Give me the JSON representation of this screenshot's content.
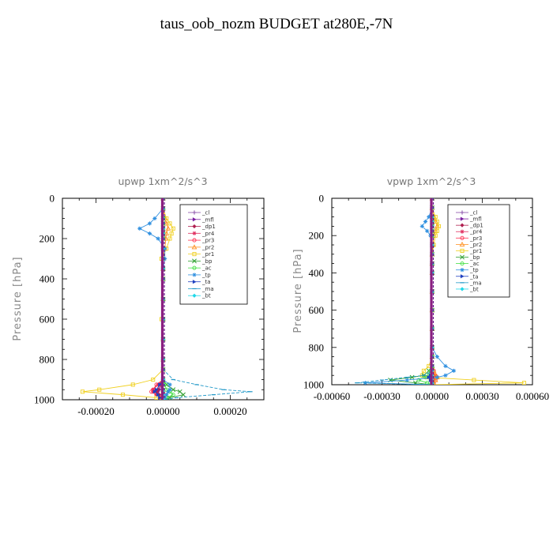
{
  "title": "taus_oob_nozm  BUDGET at280E,-7N",
  "chart_data": [
    {
      "type": "line",
      "title": "upwp   1xm^2/s^3",
      "ylabel": "Pressure [hPa]",
      "xlabel": "",
      "xlim": [
        -0.0003,
        0.0003
      ],
      "ylim": [
        1000,
        0
      ],
      "xticks": [
        -0.0002,
        0.0,
        0.0002
      ],
      "xtick_labels": [
        "-0.00020",
        "0.00000",
        "0.00020"
      ],
      "yticks": [
        0,
        200,
        400,
        600,
        800,
        1000
      ],
      "ytick_labels": [
        "0",
        "200",
        "400",
        "600",
        "800",
        "1000"
      ],
      "legend_position": "top-right",
      "p": [
        0,
        50,
        100,
        125,
        150,
        175,
        200,
        250,
        300,
        350,
        400,
        500,
        600,
        700,
        800,
        850,
        900,
        925,
        950,
        960,
        975,
        990,
        1000
      ],
      "series": [
        {
          "name": "_cl",
          "color": "#8a4fa8",
          "marker": "plus",
          "values": [
            0,
            0,
            0,
            0,
            0,
            0,
            0,
            0,
            0,
            0,
            0,
            0,
            0,
            0,
            0,
            0,
            0,
            0,
            0,
            0,
            0,
            0,
            0
          ]
        },
        {
          "name": "_mfl",
          "color": "#7a1fa2",
          "marker": "tri-right",
          "values": [
            0,
            0,
            0,
            0,
            0,
            0,
            0,
            0,
            0,
            0,
            0,
            0,
            0,
            0,
            0,
            0,
            0,
            -5e-06,
            -1e-05,
            -1.5e-05,
            -1e-05,
            -5e-06,
            0
          ]
        },
        {
          "name": "_dp1",
          "color": "#b02050",
          "marker": "diamond",
          "values": [
            0,
            0,
            0,
            0,
            0,
            0,
            0,
            0,
            0,
            0,
            0,
            0,
            0,
            0,
            0,
            0,
            0,
            -8e-06,
            -1.5e-05,
            -2e-05,
            -1.2e-05,
            -5e-06,
            0
          ]
        },
        {
          "name": "_pr4",
          "color": "#e03060",
          "marker": "star",
          "values": [
            0,
            0,
            0,
            0,
            0,
            0,
            0,
            0,
            0,
            0,
            0,
            0,
            0,
            0,
            0,
            0,
            0,
            -1.5e-05,
            -3e-05,
            -3e-05,
            -2e-05,
            -1e-05,
            0
          ]
        },
        {
          "name": "_pr3",
          "color": "#ff3050",
          "marker": "circle",
          "values": [
            0,
            0,
            0,
            0,
            0,
            0,
            0,
            0,
            0,
            0,
            0,
            0,
            0,
            0,
            0,
            0,
            0,
            -2e-05,
            -3e-05,
            -3.5e-05,
            -2e-05,
            -1e-05,
            0
          ]
        },
        {
          "name": "_pr2",
          "color": "#ff9020",
          "marker": "tri-up",
          "values": [
            0,
            0,
            5e-06,
            1e-05,
            1.5e-05,
            1e-05,
            8e-06,
            5e-06,
            0,
            0,
            0,
            0,
            0,
            0,
            0,
            0,
            0,
            0,
            0,
            0,
            0,
            0,
            0
          ]
        },
        {
          "name": "_pr1",
          "color": "#f0d020",
          "marker": "square",
          "values": [
            0,
            0,
            1e-05,
            2e-05,
            3e-05,
            2.5e-05,
            2e-05,
            1e-05,
            -5e-06,
            0,
            0,
            0,
            -5e-06,
            0,
            0,
            0,
            -3e-05,
            -9e-05,
            -0.00019,
            -0.00024,
            -0.00012,
            -2e-05,
            0
          ]
        },
        {
          "name": "_bp",
          "color": "#30a030",
          "marker": "x",
          "values": [
            0,
            0,
            0,
            0,
            0,
            0,
            0,
            0,
            0,
            0,
            0,
            0,
            0,
            0,
            0,
            0,
            0,
            1e-05,
            3e-05,
            5e-05,
            6e-05,
            2e-05,
            0
          ]
        },
        {
          "name": "_ac",
          "color": "#40e040",
          "marker": "circle",
          "values": [
            0,
            0,
            0,
            0,
            0,
            0,
            0,
            0,
            0,
            0,
            0,
            0,
            0,
            0,
            0,
            0,
            0,
            5e-06,
            1e-05,
            2e-05,
            3e-05,
            1e-05,
            0
          ]
        },
        {
          "name": "_tp",
          "color": "#3090e0",
          "marker": "star",
          "values": [
            0,
            0,
            -2.5e-05,
            -4e-05,
            -7e-05,
            -4e-05,
            -1.5e-05,
            5e-06,
            5e-06,
            0,
            0,
            0,
            0,
            0,
            0,
            0,
            0,
            2e-05,
            2e-05,
            1.5e-05,
            1e-05,
            5e-06,
            0
          ]
        },
        {
          "name": "_ta",
          "color": "#2040c0",
          "marker": "tri-right",
          "values": [
            0,
            0,
            0,
            0,
            0,
            0,
            0,
            0,
            0,
            0,
            0,
            0,
            0,
            0,
            0,
            0,
            0,
            -1e-05,
            -2e-05,
            -2.5e-05,
            -1.5e-05,
            -1e-05,
            0
          ]
        },
        {
          "name": "_ma",
          "color": "#2098c8",
          "marker": "dash",
          "values": [
            0,
            0,
            0,
            0,
            0,
            0,
            0,
            0,
            0,
            0,
            0,
            0,
            0,
            0,
            0,
            0,
            3e-05,
            0.0001,
            0.00018,
            0.00026,
            0.00015,
            4e-05,
            0
          ]
        },
        {
          "name": "_bt",
          "color": "#20d8e8",
          "marker": "diamond",
          "values": [
            0,
            0,
            0,
            0,
            0,
            0,
            0,
            0,
            0,
            0,
            0,
            0,
            0,
            0,
            0,
            0,
            0,
            0,
            0,
            0,
            0,
            0,
            0
          ]
        }
      ]
    },
    {
      "type": "line",
      "title": "vpwp   1xm^2/s^3",
      "ylabel": "Pressure [hPa]",
      "xlabel": "",
      "xlim": [
        -0.0006,
        0.0006
      ],
      "ylim": [
        1000,
        0
      ],
      "xticks": [
        -0.0006,
        -0.0003,
        0.0,
        0.0003,
        0.0006
      ],
      "xtick_labels": [
        "-0.00060",
        "-0.00030",
        "0.00000",
        "0.00030",
        "0.00060"
      ],
      "yticks": [
        0,
        200,
        400,
        600,
        800,
        1000
      ],
      "ytick_labels": [
        "0",
        "200",
        "400",
        "600",
        "800",
        "1000"
      ],
      "legend_position": "top-right",
      "p": [
        0,
        50,
        100,
        125,
        150,
        175,
        200,
        250,
        300,
        350,
        400,
        500,
        600,
        700,
        800,
        850,
        900,
        925,
        950,
        960,
        975,
        990,
        1000
      ],
      "series": [
        {
          "name": "_cl",
          "color": "#8a4fa8",
          "marker": "plus",
          "values": [
            0,
            0,
            0,
            0,
            0,
            0,
            0,
            0,
            0,
            0,
            0,
            0,
            0,
            0,
            0,
            0,
            0,
            0,
            0,
            0,
            0,
            0,
            0
          ]
        },
        {
          "name": "_mfl",
          "color": "#7a1fa2",
          "marker": "tri-right",
          "values": [
            0,
            0,
            0,
            0,
            0,
            0,
            0,
            0,
            0,
            0,
            0,
            0,
            0,
            0,
            0,
            0,
            0,
            0,
            -1e-05,
            -1e-05,
            -5e-06,
            0,
            0
          ]
        },
        {
          "name": "_dp1",
          "color": "#b02050",
          "marker": "diamond",
          "values": [
            0,
            0,
            0,
            0,
            0,
            0,
            0,
            0,
            0,
            0,
            0,
            0,
            0,
            0,
            0,
            0,
            0,
            0,
            1e-05,
            2e-05,
            1e-05,
            5e-06,
            0
          ]
        },
        {
          "name": "_pr4",
          "color": "#e03060",
          "marker": "star",
          "values": [
            0,
            0,
            0,
            0,
            0,
            0,
            0,
            0,
            0,
            0,
            0,
            0,
            0,
            0,
            0,
            0,
            0,
            0,
            1.5e-05,
            2e-05,
            1e-05,
            5e-06,
            0
          ]
        },
        {
          "name": "_pr3",
          "color": "#ff3050",
          "marker": "circle",
          "values": [
            0,
            0,
            0,
            0,
            0,
            0,
            0,
            0,
            0,
            0,
            0,
            0,
            0,
            0,
            0,
            0,
            0,
            1e-05,
            2e-05,
            3e-05,
            2e-05,
            1e-05,
            0
          ]
        },
        {
          "name": "_pr2",
          "color": "#ff9020",
          "marker": "tri-up",
          "values": [
            0,
            0,
            1e-05,
            2e-05,
            3e-05,
            2e-05,
            1e-05,
            5e-06,
            0,
            0,
            0,
            0,
            0,
            0,
            0,
            0,
            0,
            1e-05,
            2e-05,
            3e-05,
            2e-05,
            1e-05,
            0
          ]
        },
        {
          "name": "_pr1",
          "color": "#f0d020",
          "marker": "square",
          "values": [
            0,
            0,
            2e-05,
            3e-05,
            4e-05,
            3e-05,
            2e-05,
            1e-05,
            0,
            0,
            0,
            0,
            0,
            0,
            0,
            0,
            -2e-05,
            -5e-05,
            -6e-05,
            -3e-05,
            0.00025,
            0.00055,
            0
          ]
        },
        {
          "name": "_bp",
          "color": "#30a030",
          "marker": "x",
          "values": [
            0,
            0,
            0,
            0,
            0,
            0,
            0,
            0,
            0,
            0,
            0,
            0,
            0,
            0,
            0,
            0,
            0,
            -2e-05,
            -5e-05,
            -0.00012,
            -0.00025,
            -0.0001,
            0
          ]
        },
        {
          "name": "_ac",
          "color": "#40e040",
          "marker": "circle",
          "values": [
            0,
            0,
            0,
            0,
            0,
            0,
            0,
            0,
            0,
            0,
            0,
            0,
            0,
            0,
            0,
            0,
            0,
            -1e-05,
            -2e-05,
            -4e-05,
            -8e-05,
            -3e-05,
            0
          ]
        },
        {
          "name": "_tp",
          "color": "#3090e0",
          "marker": "star",
          "values": [
            0,
            0,
            -2e-05,
            -4e-05,
            -6e-05,
            -3e-05,
            -1e-05,
            0,
            0,
            0,
            0,
            0,
            0,
            0,
            0,
            3e-05,
            8e-05,
            0.00013,
            8e-05,
            3e-05,
            -0.00015,
            -0.0004,
            0
          ]
        },
        {
          "name": "_ta",
          "color": "#2040c0",
          "marker": "tri-right",
          "values": [
            0,
            0,
            0,
            0,
            0,
            0,
            0,
            0,
            0,
            0,
            0,
            0,
            0,
            0,
            0,
            0,
            0,
            0,
            -1e-05,
            -2e-05,
            -1e-05,
            0,
            0
          ]
        },
        {
          "name": "_ma",
          "color": "#2098c8",
          "marker": "dash",
          "values": [
            0,
            0,
            0,
            0,
            0,
            0,
            0,
            0,
            0,
            0,
            0,
            0,
            0,
            0,
            0,
            0,
            0,
            0,
            -5e-05,
            -0.00015,
            -0.0003,
            -0.00045,
            0
          ]
        },
        {
          "name": "_bt",
          "color": "#20d8e8",
          "marker": "diamond",
          "values": [
            0,
            0,
            0,
            0,
            0,
            0,
            0,
            0,
            0,
            0,
            0,
            0,
            0,
            0,
            0,
            0,
            0,
            0,
            0,
            0,
            0,
            0,
            0
          ]
        }
      ]
    }
  ]
}
